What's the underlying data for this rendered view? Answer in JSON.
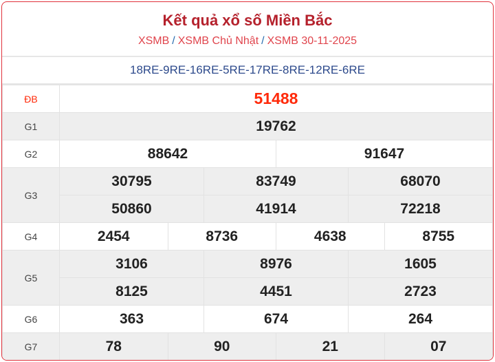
{
  "header": {
    "title": "Kết quả xổ số Miền Bắc",
    "breadcrumb": [
      "XSMB",
      "XSMB Chủ Nhật",
      "XSMB 30-11-2025"
    ],
    "separator": "/"
  },
  "codes": "18RE-9RE-16RE-5RE-17RE-8RE-12RE-6RE",
  "colors": {
    "border": "#e0303a",
    "special": "#ff2a0a",
    "title": "#b5212c",
    "codes": "#2d4a8c"
  },
  "prizes": [
    {
      "label": "ĐB",
      "rows": [
        [
          "51488"
        ]
      ]
    },
    {
      "label": "G1",
      "rows": [
        [
          "19762"
        ]
      ]
    },
    {
      "label": "G2",
      "rows": [
        [
          "88642",
          "91647"
        ]
      ]
    },
    {
      "label": "G3",
      "rows": [
        [
          "30795",
          "83749",
          "68070"
        ],
        [
          "50860",
          "41914",
          "72218"
        ]
      ]
    },
    {
      "label": "G4",
      "rows": [
        [
          "2454",
          "8736",
          "4638",
          "8755"
        ]
      ]
    },
    {
      "label": "G5",
      "rows": [
        [
          "3106",
          "8976",
          "1605"
        ],
        [
          "8125",
          "4451",
          "2723"
        ]
      ]
    },
    {
      "label": "G6",
      "rows": [
        [
          "363",
          "674",
          "264"
        ]
      ]
    },
    {
      "label": "G7",
      "rows": [
        [
          "78",
          "90",
          "21",
          "07"
        ]
      ]
    }
  ]
}
